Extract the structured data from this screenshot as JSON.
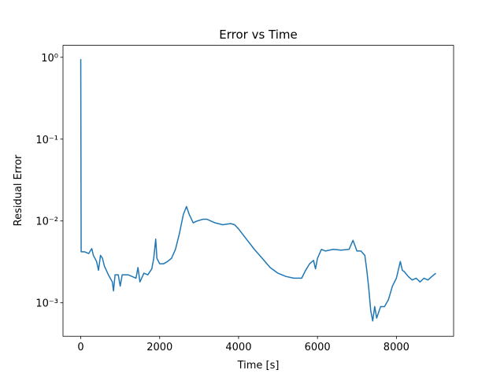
{
  "chart_data": {
    "type": "line",
    "title": "Error vs Time",
    "xlabel": "Time [s]",
    "ylabel": "Residual Error",
    "yscale": "log",
    "color": "#1f77b4",
    "xlim": [
      -450,
      9450
    ],
    "ylim": [
      0.00039,
      1.4
    ],
    "xticks": [
      0,
      2000,
      4000,
      6000,
      8000
    ],
    "yticks": [
      {
        "value": 1,
        "label": "10⁰"
      },
      {
        "value": 0.1,
        "label": "10⁻¹"
      },
      {
        "value": 0.01,
        "label": "10⁻²"
      },
      {
        "value": 0.001,
        "label": "10⁻³"
      }
    ],
    "x": [
      0,
      10,
      100,
      200,
      280,
      320,
      400,
      450,
      500,
      550,
      600,
      700,
      800,
      830,
      870,
      950,
      1000,
      1050,
      1200,
      1300,
      1400,
      1450,
      1500,
      1600,
      1700,
      1800,
      1850,
      1900,
      1930,
      2000,
      2100,
      2200,
      2300,
      2400,
      2500,
      2600,
      2680,
      2750,
      2850,
      2950,
      3100,
      3200,
      3400,
      3600,
      3800,
      3900,
      4000,
      4200,
      4400,
      4600,
      4800,
      5000,
      5200,
      5400,
      5600,
      5700,
      5800,
      5900,
      5950,
      6000,
      6100,
      6200,
      6400,
      6600,
      6800,
      6900,
      6950,
      7000,
      7100,
      7200,
      7250,
      7300,
      7350,
      7400,
      7450,
      7500,
      7600,
      7700,
      7800,
      7900,
      8000,
      8100,
      8150,
      8200,
      8300,
      8400,
      8500,
      8600,
      8700,
      8800,
      8900,
      9000
    ],
    "values": [
      0.95,
      0.0042,
      0.0042,
      0.004,
      0.0046,
      0.0038,
      0.0032,
      0.0025,
      0.0038,
      0.0035,
      0.0028,
      0.0022,
      0.0018,
      0.0014,
      0.0022,
      0.0022,
      0.0016,
      0.0022,
      0.0022,
      0.0021,
      0.002,
      0.0027,
      0.0018,
      0.0023,
      0.0022,
      0.0026,
      0.0035,
      0.006,
      0.0035,
      0.003,
      0.003,
      0.0032,
      0.0035,
      0.0045,
      0.007,
      0.012,
      0.015,
      0.012,
      0.0095,
      0.01,
      0.0105,
      0.0105,
      0.0095,
      0.009,
      0.0093,
      0.009,
      0.008,
      0.006,
      0.0045,
      0.0035,
      0.0027,
      0.0023,
      0.0021,
      0.002,
      0.002,
      0.0025,
      0.003,
      0.0033,
      0.0026,
      0.0035,
      0.0045,
      0.0043,
      0.0045,
      0.0044,
      0.0045,
      0.0058,
      0.005,
      0.0043,
      0.0043,
      0.0038,
      0.0025,
      0.0015,
      0.0008,
      0.0006,
      0.0009,
      0.00065,
      0.0009,
      0.0009,
      0.0011,
      0.0016,
      0.002,
      0.0032,
      0.0025,
      0.0024,
      0.0021,
      0.0019,
      0.002,
      0.0018,
      0.002,
      0.0019,
      0.0021,
      0.0023
    ]
  }
}
